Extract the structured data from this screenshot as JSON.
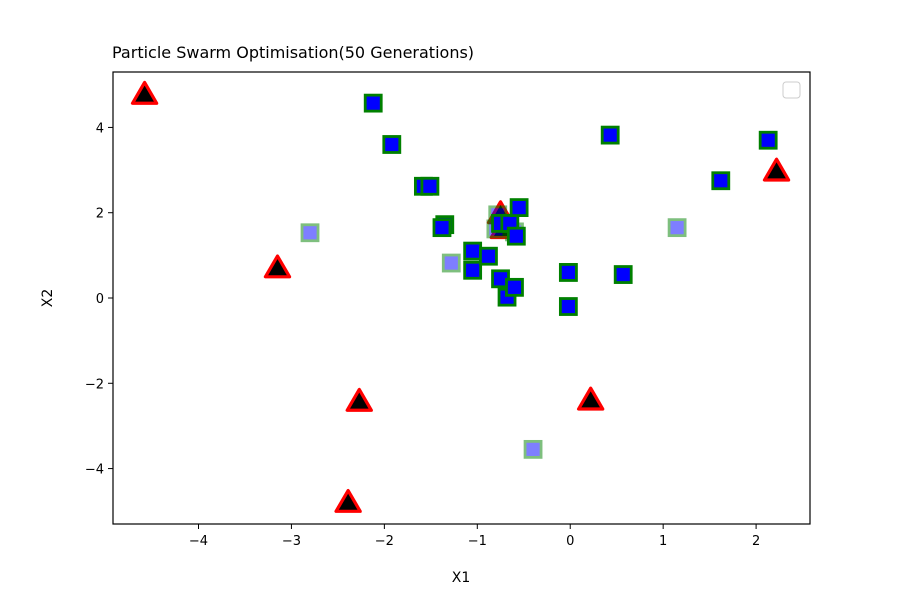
{
  "chart_data": {
    "type": "scatter",
    "title": "Particle Swarm Optimisation(50 Generations)",
    "xlabel": "X1",
    "ylabel": "X2",
    "xlim": [
      -4.92,
      2.58
    ],
    "ylim": [
      -5.3,
      5.3
    ],
    "x_ticks": [
      -4,
      -3,
      -2,
      -1,
      0,
      1,
      2
    ],
    "y_ticks": [
      -4,
      -2,
      0,
      2,
      4
    ],
    "x_tick_labels": [
      "−4",
      "−3",
      "−2",
      "−1",
      "0",
      "1",
      "2"
    ],
    "y_tick_labels": [
      "−4",
      "−2",
      "0",
      "2",
      "4"
    ],
    "grid": false,
    "legend": {
      "placement": "top-right",
      "entries": []
    },
    "series": [
      {
        "marker": "triangle",
        "fill_color": "#000000",
        "edge_color": "#ff0000",
        "alpha": 1.0,
        "points": [
          {
            "x": -4.58,
            "y": 4.75
          },
          {
            "x": 2.22,
            "y": 2.95
          },
          {
            "x": -3.15,
            "y": 0.68
          },
          {
            "x": -2.27,
            "y": -2.45
          },
          {
            "x": 0.22,
            "y": -2.42
          },
          {
            "x": -2.39,
            "y": -4.82
          },
          {
            "x": -0.75,
            "y": 1.95
          },
          {
            "x": -0.72,
            "y": 1.6
          }
        ]
      },
      {
        "marker": "square",
        "fill_color": "#0000ff",
        "edge_color": "#008000",
        "alpha": 0.5,
        "points": [
          {
            "x": -2.8,
            "y": 1.53
          },
          {
            "x": -1.28,
            "y": 0.82
          },
          {
            "x": -0.8,
            "y": 1.62
          },
          {
            "x": -0.78,
            "y": 1.95
          },
          {
            "x": -0.4,
            "y": -3.55
          },
          {
            "x": 1.15,
            "y": 1.65
          },
          {
            "x": -0.02,
            "y": 0.6
          },
          {
            "x": -0.6,
            "y": 1.55
          }
        ]
      },
      {
        "marker": "square",
        "fill_color": "#0000ff",
        "edge_color": "#008000",
        "alpha": 1.0,
        "points": [
          {
            "x": -2.12,
            "y": 4.57
          },
          {
            "x": -1.92,
            "y": 3.6
          },
          {
            "x": -1.58,
            "y": 2.62
          },
          {
            "x": -1.51,
            "y": 2.62
          },
          {
            "x": -1.35,
            "y": 1.72
          },
          {
            "x": -1.38,
            "y": 1.65
          },
          {
            "x": -1.05,
            "y": 1.1
          },
          {
            "x": -1.05,
            "y": 0.65
          },
          {
            "x": -0.88,
            "y": 0.98
          },
          {
            "x": -0.75,
            "y": 1.75
          },
          {
            "x": -0.65,
            "y": 1.75
          },
          {
            "x": -0.58,
            "y": 1.45
          },
          {
            "x": -0.55,
            "y": 2.12
          },
          {
            "x": -0.75,
            "y": 0.45
          },
          {
            "x": -0.68,
            "y": 0.02
          },
          {
            "x": -0.6,
            "y": 0.25
          },
          {
            "x": -0.02,
            "y": -0.2
          },
          {
            "x": 0.43,
            "y": 3.82
          },
          {
            "x": 0.57,
            "y": 0.55
          },
          {
            "x": 1.62,
            "y": 2.75
          },
          {
            "x": 2.13,
            "y": 3.7
          },
          {
            "x": -0.02,
            "y": 0.6
          }
        ]
      }
    ]
  }
}
